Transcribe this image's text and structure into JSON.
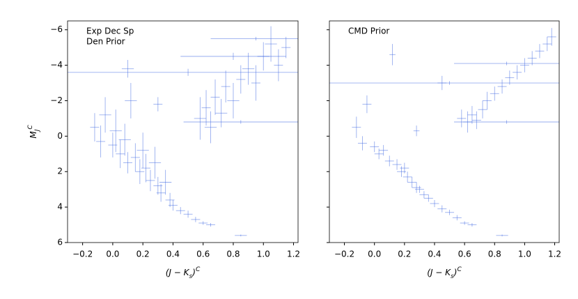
{
  "chart_data": [
    {
      "type": "errorbar_scatter",
      "annotation": [
        "Exp Dec Sp",
        "Den Prior"
      ],
      "xlabel": {
        "base": "(J − K",
        "sub": "s",
        "close": ")",
        "sup": "C"
      },
      "ylabel": {
        "base": "M",
        "sub": "J",
        "sup": "C"
      },
      "color": "#4169e1",
      "xlim": [
        -0.3,
        1.23
      ],
      "ylim": [
        -6.5,
        6
      ],
      "y_inverted": true,
      "xticks": [
        {
          "value": -0.2,
          "label": "−0.2"
        },
        {
          "value": 0.0,
          "label": "0.0"
        },
        0.2,
        0.4,
        0.6,
        0.8,
        {
          "value": 1.0,
          "label": "1.0"
        },
        1.2
      ],
      "yticks": [
        {
          "value": -6,
          "label": "−6"
        },
        {
          "value": -4,
          "label": "−4"
        },
        {
          "value": -2,
          "label": "−2"
        },
        0,
        2,
        4,
        6
      ],
      "x": [
        -0.12,
        -0.08,
        -0.05,
        0.0,
        0.02,
        0.05,
        0.08,
        0.1,
        0.12,
        0.15,
        0.18,
        0.2,
        0.22,
        0.25,
        0.28,
        0.3,
        0.32,
        0.35,
        0.38,
        0.4,
        0.45,
        0.5,
        0.55,
        0.6,
        0.65,
        0.85,
        0.1,
        0.3,
        0.58,
        0.62,
        0.65,
        0.68,
        0.72,
        0.75,
        0.8,
        0.85,
        0.9,
        0.95,
        1.0,
        1.05,
        1.1,
        1.15,
        0.5,
        0.85,
        0.95,
        0.8
      ],
      "values": [
        -0.5,
        0.3,
        -1.2,
        0.5,
        -0.3,
        1.0,
        0.2,
        1.5,
        -2.0,
        1.2,
        2.0,
        0.8,
        1.8,
        2.5,
        1.5,
        2.8,
        3.2,
        2.6,
        3.6,
        3.9,
        4.2,
        4.4,
        4.7,
        4.9,
        5.0,
        5.6,
        -3.8,
        -1.8,
        -1.0,
        -1.6,
        -0.5,
        -2.2,
        -1.3,
        -2.8,
        -2.0,
        -3.2,
        -3.8,
        -3.0,
        -4.5,
        -5.2,
        -4.0,
        -5.0,
        -3.6,
        -0.8,
        -5.5,
        -4.5
      ],
      "xerr": [
        0.03,
        0.03,
        0.04,
        0.03,
        0.04,
        0.03,
        0.04,
        0.03,
        0.04,
        0.03,
        0.03,
        0.04,
        0.03,
        0.03,
        0.04,
        0.03,
        0.03,
        0.04,
        0.03,
        0.03,
        0.03,
        0.03,
        0.03,
        0.03,
        0.03,
        0.04,
        0.04,
        0.03,
        0.04,
        0.03,
        0.04,
        0.03,
        0.04,
        0.03,
        0.04,
        0.03,
        0.04,
        0.03,
        0.04,
        0.04,
        0.03,
        0.03,
        0.8,
        0.38,
        0.3,
        0.35
      ],
      "yerr": [
        0.8,
        0.9,
        1.0,
        0.7,
        1.2,
        0.8,
        0.9,
        0.6,
        1.0,
        0.8,
        0.7,
        1.0,
        0.8,
        0.6,
        0.9,
        0.5,
        0.5,
        0.7,
        0.4,
        0.3,
        0.2,
        0.2,
        0.15,
        0.1,
        0.1,
        0.05,
        0.5,
        0.4,
        1.2,
        1.0,
        0.9,
        1.0,
        0.8,
        0.9,
        1.0,
        0.8,
        0.9,
        1.0,
        0.8,
        1.0,
        0.9,
        0.6,
        0.2,
        0.1,
        0.1,
        0.2
      ]
    },
    {
      "type": "errorbar_scatter",
      "annotation": [
        "CMD Prior"
      ],
      "xlabel": {
        "base": "(J − K",
        "sub": "s",
        "close": ")",
        "sup": "C"
      },
      "color": "#4169e1",
      "sharey": true,
      "xlim": [
        -0.3,
        1.23
      ],
      "ylim": [
        -6.5,
        6
      ],
      "y_inverted": true,
      "xticks": [
        {
          "value": -0.2,
          "label": "−0.2"
        },
        {
          "value": 0.0,
          "label": "0.0"
        },
        0.2,
        0.4,
        0.6,
        0.8,
        {
          "value": 1.0,
          "label": "1.0"
        },
        1.2
      ],
      "x": [
        -0.12,
        -0.08,
        -0.05,
        0.0,
        0.03,
        0.06,
        0.1,
        0.12,
        0.15,
        0.18,
        0.2,
        0.22,
        0.25,
        0.28,
        0.3,
        0.33,
        0.36,
        0.4,
        0.45,
        0.5,
        0.55,
        0.6,
        0.65,
        0.85,
        0.45,
        0.28,
        0.58,
        0.62,
        0.65,
        0.68,
        0.72,
        0.75,
        0.8,
        0.85,
        0.9,
        0.95,
        1.0,
        1.05,
        1.1,
        1.15,
        1.18,
        0.5,
        0.88,
        0.88
      ],
      "values": [
        -0.5,
        0.4,
        -1.8,
        0.6,
        1.0,
        0.8,
        1.4,
        -4.6,
        1.6,
        2.0,
        1.8,
        2.3,
        2.6,
        2.9,
        3.0,
        3.3,
        3.5,
        3.8,
        4.1,
        4.3,
        4.6,
        4.9,
        5.0,
        5.6,
        -3.0,
        -0.3,
        -1.0,
        -0.8,
        -1.2,
        -0.9,
        -1.5,
        -2.0,
        -2.4,
        -2.8,
        -3.3,
        -3.6,
        -4.0,
        -4.4,
        -4.8,
        -5.2,
        -5.6,
        -3.0,
        -0.8,
        -4.1
      ],
      "xerr": [
        0.03,
        0.03,
        0.03,
        0.03,
        0.03,
        0.03,
        0.03,
        0.02,
        0.03,
        0.03,
        0.03,
        0.03,
        0.03,
        0.03,
        0.03,
        0.03,
        0.03,
        0.03,
        0.03,
        0.03,
        0.03,
        0.03,
        0.03,
        0.04,
        0.03,
        0.02,
        0.03,
        0.03,
        0.03,
        0.03,
        0.03,
        0.03,
        0.03,
        0.03,
        0.03,
        0.03,
        0.03,
        0.03,
        0.03,
        0.03,
        0.03,
        0.8,
        0.35,
        0.35
      ],
      "yerr": [
        0.6,
        0.4,
        0.5,
        0.3,
        0.3,
        0.3,
        0.3,
        0.6,
        0.3,
        0.3,
        0.3,
        0.3,
        0.3,
        0.3,
        0.2,
        0.2,
        0.2,
        0.2,
        0.2,
        0.15,
        0.15,
        0.1,
        0.1,
        0.05,
        0.4,
        0.3,
        0.5,
        0.6,
        0.5,
        0.5,
        0.5,
        0.5,
        0.4,
        0.4,
        0.4,
        0.4,
        0.4,
        0.4,
        0.4,
        0.4,
        0.5,
        0.1,
        0.1,
        0.1
      ]
    }
  ]
}
